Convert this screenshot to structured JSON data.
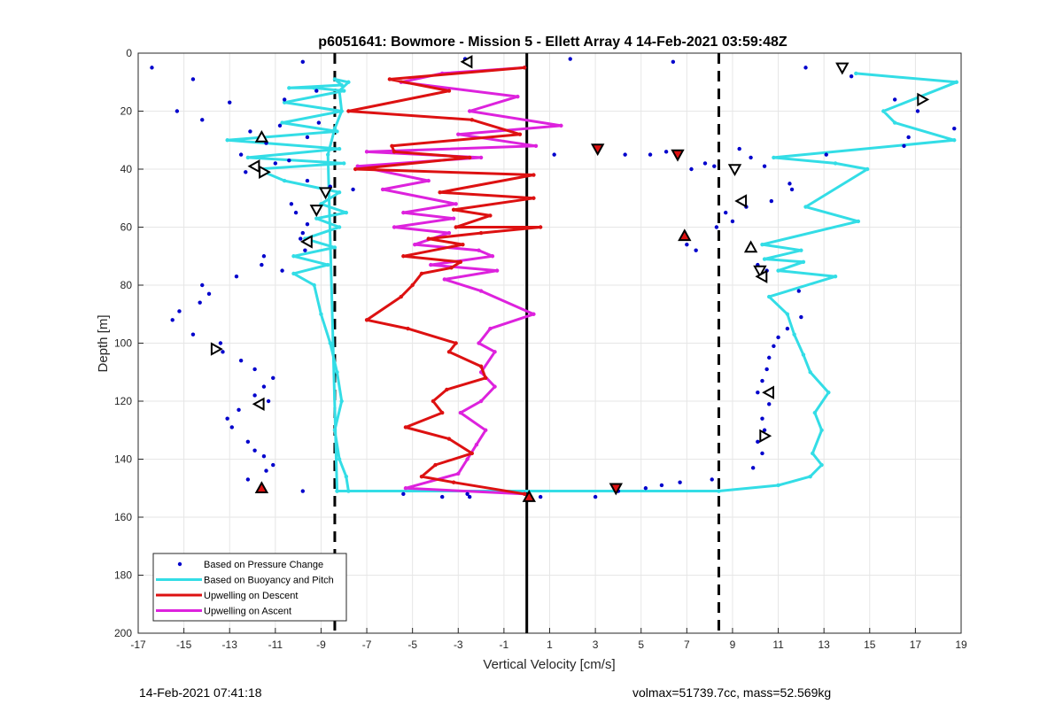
{
  "footer": {
    "timestamp": "14-Feb-2021 07:41:18",
    "vol_mass": "volmax=51739.7cc, mass=52.569kg"
  },
  "chart_data": {
    "type": "scatter",
    "title": "p6051641: Bowmore - Mission 5 - Ellett Array 4 14-Feb-2021 03:59:48Z",
    "xlabel": "Vertical Velocity [cm/s]",
    "ylabel": "Depth [m]",
    "xlim": [
      -17,
      19
    ],
    "ylim": [
      0,
      200
    ],
    "y_reversed": true,
    "grid": true,
    "xticks": [
      -17,
      -15,
      -13,
      -11,
      -9,
      -7,
      -5,
      -3,
      -1,
      1,
      3,
      5,
      7,
      9,
      11,
      13,
      15,
      17,
      19
    ],
    "yticks": [
      0,
      20,
      40,
      60,
      80,
      100,
      120,
      140,
      160,
      180,
      200
    ],
    "legend_position": "bottom-left",
    "colors": {
      "pressure": "#0000cc",
      "buoyancy": "#33dde6",
      "descent": "#dd1111",
      "ascent": "#dd22dd",
      "markers": "#000000"
    },
    "vlines": [
      {
        "x": -8.4,
        "style": "dashed"
      },
      {
        "x": 0.0,
        "style": "solid"
      },
      {
        "x": 8.4,
        "style": "dashed"
      }
    ],
    "series": [
      {
        "name": "Based on Pressure Change",
        "kind": "points",
        "points": [
          [
            -16.4,
            5
          ],
          [
            -14.6,
            9
          ],
          [
            -13.0,
            17
          ],
          [
            -15.3,
            20
          ],
          [
            -14.2,
            23
          ],
          [
            -12.1,
            27
          ],
          [
            -11.4,
            31
          ],
          [
            -12.5,
            35
          ],
          [
            -11.0,
            38
          ],
          [
            -12.3,
            41
          ],
          [
            -9.8,
            3
          ],
          [
            -9.2,
            13
          ],
          [
            -10.6,
            16
          ],
          [
            -9.1,
            24
          ],
          [
            -10.8,
            25
          ],
          [
            -9.6,
            29
          ],
          [
            -10.4,
            37
          ],
          [
            -9.6,
            44
          ],
          [
            -8.6,
            46
          ],
          [
            -7.6,
            47
          ],
          [
            -10.3,
            52
          ],
          [
            -10.1,
            55
          ],
          [
            -9.6,
            59
          ],
          [
            -9.8,
            62
          ],
          [
            -9.9,
            64
          ],
          [
            -9.7,
            68
          ],
          [
            -11.5,
            70
          ],
          [
            -11.6,
            73
          ],
          [
            -10.7,
            75
          ],
          [
            -12.7,
            77
          ],
          [
            -14.2,
            80
          ],
          [
            -13.9,
            83
          ],
          [
            -14.3,
            86
          ],
          [
            -15.2,
            89
          ],
          [
            -15.5,
            92
          ],
          [
            -14.6,
            97
          ],
          [
            -13.4,
            100
          ],
          [
            -13.3,
            103
          ],
          [
            -12.5,
            106
          ],
          [
            -11.9,
            109
          ],
          [
            -11.1,
            112
          ],
          [
            -11.5,
            115
          ],
          [
            -11.9,
            118
          ],
          [
            -11.3,
            120
          ],
          [
            -12.6,
            123
          ],
          [
            -13.1,
            126
          ],
          [
            -12.9,
            129
          ],
          [
            -12.2,
            134
          ],
          [
            -11.9,
            137
          ],
          [
            -11.5,
            139
          ],
          [
            -11.1,
            142
          ],
          [
            -11.4,
            144
          ],
          [
            -12.2,
            147
          ],
          [
            -9.8,
            151
          ],
          [
            -2.7,
            2
          ],
          [
            1.9,
            2
          ],
          [
            6.4,
            3
          ],
          [
            1.2,
            35
          ],
          [
            5.4,
            35
          ],
          [
            6.1,
            34
          ],
          [
            4.3,
            35
          ],
          [
            7.8,
            38
          ],
          [
            8.2,
            39
          ],
          [
            7.2,
            40
          ],
          [
            9.3,
            33
          ],
          [
            9.8,
            36
          ],
          [
            10.4,
            39
          ],
          [
            11.5,
            45
          ],
          [
            11.6,
            47
          ],
          [
            10.7,
            51
          ],
          [
            9.6,
            53
          ],
          [
            8.7,
            55
          ],
          [
            9.0,
            58
          ],
          [
            8.3,
            60
          ],
          [
            7.0,
            66
          ],
          [
            7.4,
            68
          ],
          [
            10.1,
            73
          ],
          [
            10.5,
            75
          ],
          [
            11.9,
            82
          ],
          [
            12.0,
            91
          ],
          [
            11.4,
            95
          ],
          [
            11.0,
            98
          ],
          [
            10.8,
            101
          ],
          [
            10.6,
            105
          ],
          [
            10.5,
            109
          ],
          [
            10.3,
            113
          ],
          [
            10.1,
            117
          ],
          [
            10.6,
            121
          ],
          [
            10.3,
            126
          ],
          [
            10.4,
            130
          ],
          [
            10.1,
            134
          ],
          [
            10.3,
            138
          ],
          [
            9.9,
            143
          ],
          [
            8.1,
            147
          ],
          [
            6.7,
            148
          ],
          [
            5.9,
            149
          ],
          [
            5.2,
            150
          ],
          [
            4.0,
            151
          ],
          [
            -5.4,
            152
          ],
          [
            -3.7,
            153
          ],
          [
            -2.6,
            152
          ],
          [
            -2.5,
            153
          ],
          [
            0.6,
            153
          ],
          [
            3.0,
            153
          ],
          [
            13.1,
            35
          ],
          [
            12.2,
            5
          ],
          [
            14.2,
            8
          ],
          [
            16.1,
            16
          ],
          [
            17.1,
            20
          ],
          [
            18.7,
            26
          ],
          [
            16.7,
            29
          ],
          [
            16.5,
            32
          ]
        ]
      },
      {
        "name": "Based on Buoyancy and Pitch",
        "kind": "line",
        "points": [
          [
            -8.3,
            151
          ],
          [
            -7.8,
            151
          ],
          [
            -7.9,
            146
          ],
          [
            -8.2,
            140
          ],
          [
            -8.4,
            130
          ],
          [
            -8.1,
            120
          ],
          [
            -8.3,
            110
          ],
          [
            -8.6,
            100
          ],
          [
            -9.0,
            90
          ],
          [
            -9.3,
            80
          ],
          [
            -10.2,
            76
          ],
          [
            -8.7,
            73
          ],
          [
            -10.2,
            70
          ],
          [
            -8.4,
            67
          ],
          [
            -9.7,
            64
          ],
          [
            -8.2,
            60
          ],
          [
            -9.2,
            57
          ],
          [
            -7.9,
            55
          ],
          [
            -9.0,
            52
          ],
          [
            -8.2,
            48
          ],
          [
            -10.6,
            44
          ],
          [
            -11.8,
            40
          ],
          [
            -8.0,
            38
          ],
          [
            -12.2,
            36
          ],
          [
            -8.2,
            33
          ],
          [
            -13.1,
            30
          ],
          [
            -8.3,
            27
          ],
          [
            -10.7,
            24
          ],
          [
            -8.1,
            20
          ],
          [
            -10.6,
            17
          ],
          [
            -8.0,
            13
          ],
          [
            -9.3,
            12
          ],
          [
            -10.4,
            12
          ],
          [
            -8.1,
            11
          ],
          [
            -8.4,
            9
          ],
          [
            -7.8,
            10
          ],
          [
            -8.2,
            13
          ],
          [
            -8.1,
            20
          ],
          [
            -8.4,
            26
          ],
          [
            -8.7,
            35
          ],
          [
            -8.3,
            151
          ],
          [
            8.4,
            151
          ],
          [
            11.0,
            149
          ],
          [
            12.4,
            146
          ],
          [
            12.9,
            142
          ],
          [
            12.5,
            138
          ],
          [
            12.9,
            130
          ],
          [
            12.6,
            124
          ],
          [
            13.2,
            117
          ],
          [
            12.4,
            110
          ],
          [
            12.1,
            104
          ],
          [
            11.7,
            97
          ],
          [
            11.4,
            90
          ],
          [
            10.6,
            84
          ],
          [
            13.5,
            77
          ],
          [
            11.0,
            75
          ],
          [
            12.1,
            72
          ],
          [
            10.4,
            71
          ],
          [
            12.0,
            68
          ],
          [
            10.3,
            66
          ],
          [
            14.5,
            58
          ],
          [
            12.2,
            53
          ],
          [
            14.9,
            40
          ],
          [
            13.5,
            38
          ],
          [
            10.8,
            36
          ],
          [
            18.7,
            30
          ],
          [
            16.1,
            24
          ],
          [
            15.6,
            20
          ],
          [
            18.8,
            10
          ],
          [
            14.4,
            7
          ]
        ]
      },
      {
        "name": "Upwelling on Descent",
        "kind": "line",
        "points": [
          [
            -0.1,
            5
          ],
          [
            -6.0,
            9
          ],
          [
            -3.4,
            13
          ],
          [
            -7.8,
            20
          ],
          [
            -2.4,
            23
          ],
          [
            -0.3,
            28
          ],
          [
            -5.9,
            32
          ],
          [
            -5.8,
            34
          ],
          [
            -2.5,
            36
          ],
          [
            -7.5,
            40
          ],
          [
            0.3,
            42
          ],
          [
            -3.8,
            48
          ],
          [
            0.3,
            50
          ],
          [
            -3.2,
            54
          ],
          [
            -1.6,
            56
          ],
          [
            -3.1,
            60
          ],
          [
            0.6,
            60
          ],
          [
            -2.0,
            62
          ],
          [
            -4.3,
            64
          ],
          [
            -2.8,
            66
          ],
          [
            -5.4,
            70
          ],
          [
            -2.9,
            72
          ],
          [
            -3.3,
            74
          ],
          [
            -4.6,
            76
          ],
          [
            -5.0,
            80
          ],
          [
            -5.5,
            84
          ],
          [
            -7.0,
            92
          ],
          [
            -5.2,
            95
          ],
          [
            -3.1,
            100
          ],
          [
            -3.4,
            103
          ],
          [
            -2.0,
            108
          ],
          [
            -1.8,
            112
          ],
          [
            -3.5,
            116
          ],
          [
            -4.1,
            120
          ],
          [
            -3.7,
            124
          ],
          [
            -5.3,
            129
          ],
          [
            -3.4,
            133
          ],
          [
            -2.4,
            138
          ],
          [
            -4.0,
            142
          ],
          [
            -4.6,
            146
          ],
          [
            -3.2,
            148
          ],
          [
            -0.1,
            152
          ]
        ]
      },
      {
        "name": "Upwelling on Ascent",
        "kind": "line",
        "points": [
          [
            -0.1,
            5
          ],
          [
            -3.7,
            7
          ],
          [
            -5.5,
            10
          ],
          [
            -0.4,
            15
          ],
          [
            -2.5,
            20
          ],
          [
            1.5,
            25
          ],
          [
            -3.0,
            28
          ],
          [
            0.4,
            32
          ],
          [
            -7.0,
            34
          ],
          [
            -2.0,
            36
          ],
          [
            -7.4,
            39
          ],
          [
            -4.3,
            44
          ],
          [
            -6.3,
            47
          ],
          [
            -3.1,
            52
          ],
          [
            -5.4,
            55
          ],
          [
            -3.2,
            57
          ],
          [
            -5.8,
            60
          ],
          [
            -3.4,
            62
          ],
          [
            -4.9,
            66
          ],
          [
            -2.1,
            68
          ],
          [
            -1.5,
            70
          ],
          [
            -4.2,
            73
          ],
          [
            -1.3,
            75
          ],
          [
            -3.6,
            78
          ],
          [
            -2.0,
            82
          ],
          [
            0.3,
            90
          ],
          [
            -1.6,
            95
          ],
          [
            -2.1,
            100
          ],
          [
            -1.4,
            103
          ],
          [
            -2.0,
            110
          ],
          [
            -1.4,
            115
          ],
          [
            -2.0,
            120
          ],
          [
            -2.9,
            124
          ],
          [
            -1.8,
            130
          ],
          [
            -2.2,
            135
          ],
          [
            -2.6,
            140
          ],
          [
            -3.0,
            145
          ],
          [
            -5.3,
            150
          ],
          [
            -0.1,
            152
          ]
        ]
      },
      {
        "name": "",
        "kind": "markers",
        "points": [
          [
            -2.6,
            3,
            "left"
          ],
          [
            13.8,
            5,
            "down"
          ],
          [
            17.3,
            16,
            "right"
          ],
          [
            -11.6,
            29,
            "up"
          ],
          [
            -11.9,
            39,
            "left"
          ],
          [
            -11.5,
            41,
            "right"
          ],
          [
            3.1,
            33,
            "down"
          ],
          [
            6.6,
            35,
            "down"
          ],
          [
            9.1,
            40,
            "down"
          ],
          [
            -8.8,
            48,
            "down"
          ],
          [
            9.4,
            51,
            "left"
          ],
          [
            -9.2,
            54,
            "down"
          ],
          [
            6.9,
            63,
            "up"
          ],
          [
            -9.6,
            65,
            "left"
          ],
          [
            9.8,
            67,
            "up"
          ],
          [
            10.2,
            75,
            "down"
          ],
          [
            10.3,
            77,
            "left"
          ],
          [
            -13.6,
            102,
            "right"
          ],
          [
            10.6,
            117,
            "left"
          ],
          [
            -11.7,
            121,
            "left"
          ],
          [
            10.4,
            132,
            "right"
          ],
          [
            3.9,
            150,
            "down"
          ],
          [
            -11.6,
            150,
            "up"
          ],
          [
            0.1,
            153,
            "up"
          ]
        ],
        "red_filled": [
          [
            3.1,
            33
          ],
          [
            6.6,
            35
          ],
          [
            6.9,
            63
          ],
          [
            3.9,
            150
          ],
          [
            -11.6,
            150
          ],
          [
            0.1,
            153
          ]
        ]
      }
    ]
  }
}
